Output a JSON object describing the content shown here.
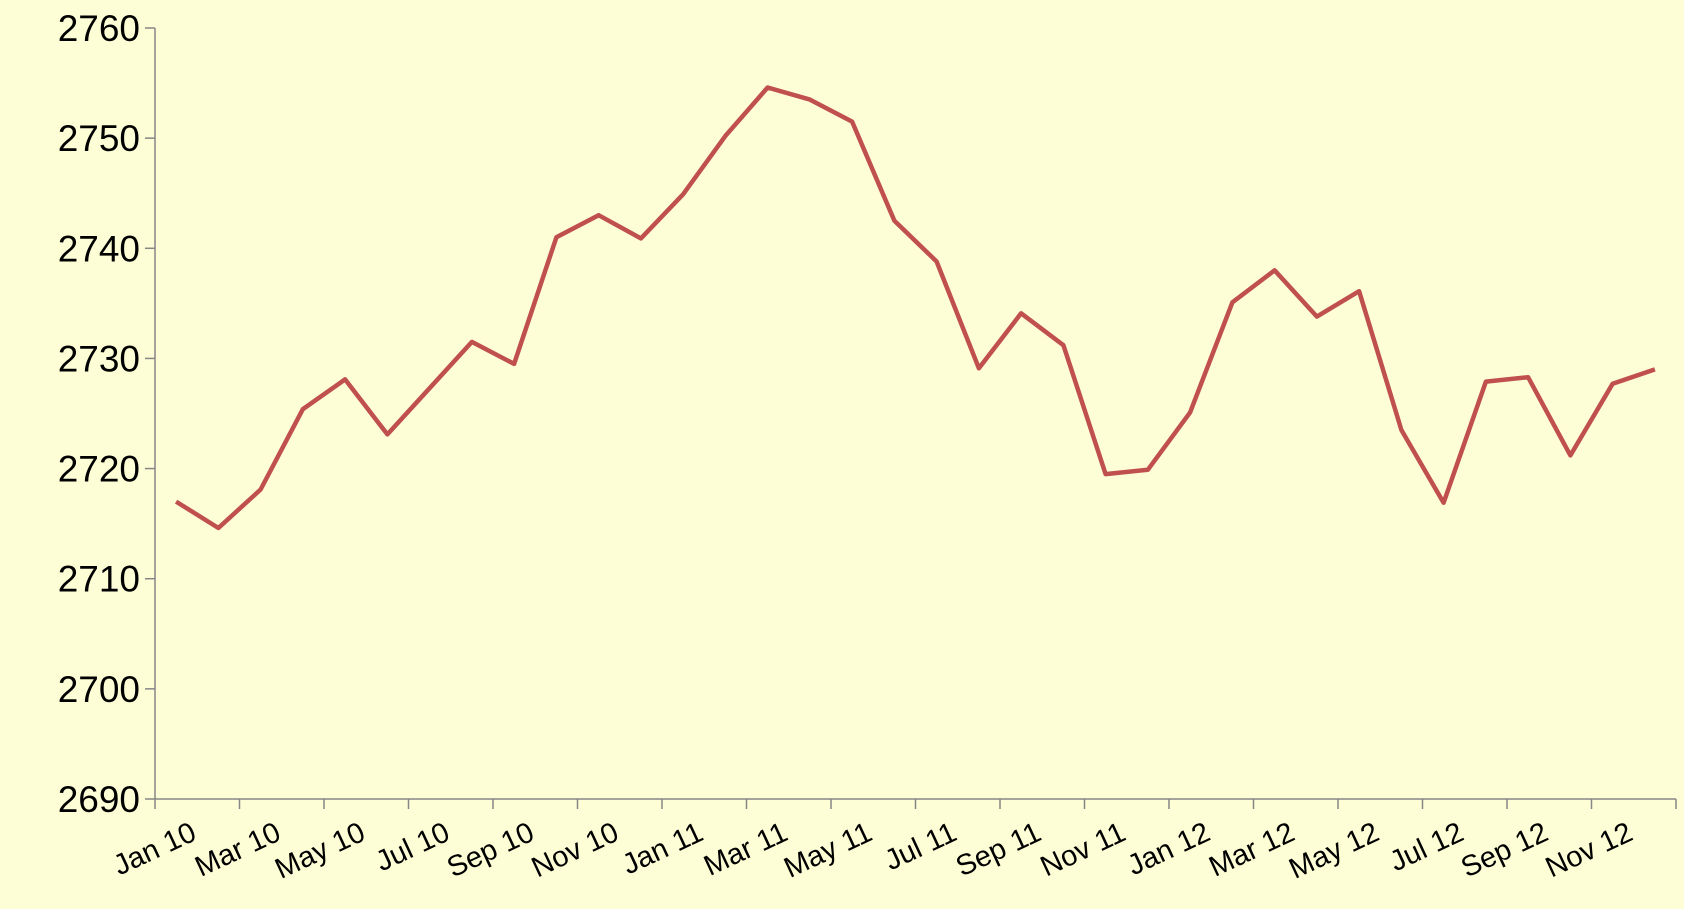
{
  "chart_data": {
    "type": "line",
    "categories": [
      "Jan 10",
      null,
      "Mar 10",
      null,
      "May 10",
      null,
      "Jul 10",
      null,
      "Sep 10",
      null,
      "Nov 10",
      null,
      "Jan 11",
      null,
      "Mar 11",
      null,
      "May 11",
      null,
      "Jul 11",
      null,
      "Sep 11",
      null,
      "Nov 11",
      null,
      "Jan 12",
      null,
      "Mar 12",
      null,
      "May 12",
      null,
      "Jul 12",
      null,
      "Sep 12",
      null,
      "Nov 12",
      null
    ],
    "series": [
      {
        "color": "#c0504d",
        "values": [
          2717.0,
          2714.6,
          2718.1,
          2725.4,
          2728.1,
          2723.1,
          2727.3,
          2731.5,
          2729.5,
          2741.0,
          2743.0,
          2740.9,
          2744.9,
          2750.2,
          2754.6,
          2753.5,
          2751.5,
          2742.5,
          2738.8,
          2729.1,
          2734.1,
          2731.2,
          2719.5,
          2719.9,
          2725.1,
          2735.1,
          2738.0,
          2733.8,
          2736.1,
          2723.5,
          2716.9,
          2727.9,
          2728.3,
          2721.2,
          2727.7,
          2729.0
        ]
      }
    ],
    "ylim": [
      2690,
      2760
    ],
    "yticks": [
      2690,
      2700,
      2710,
      2720,
      2730,
      2740,
      2750,
      2760
    ],
    "grid": false
  }
}
